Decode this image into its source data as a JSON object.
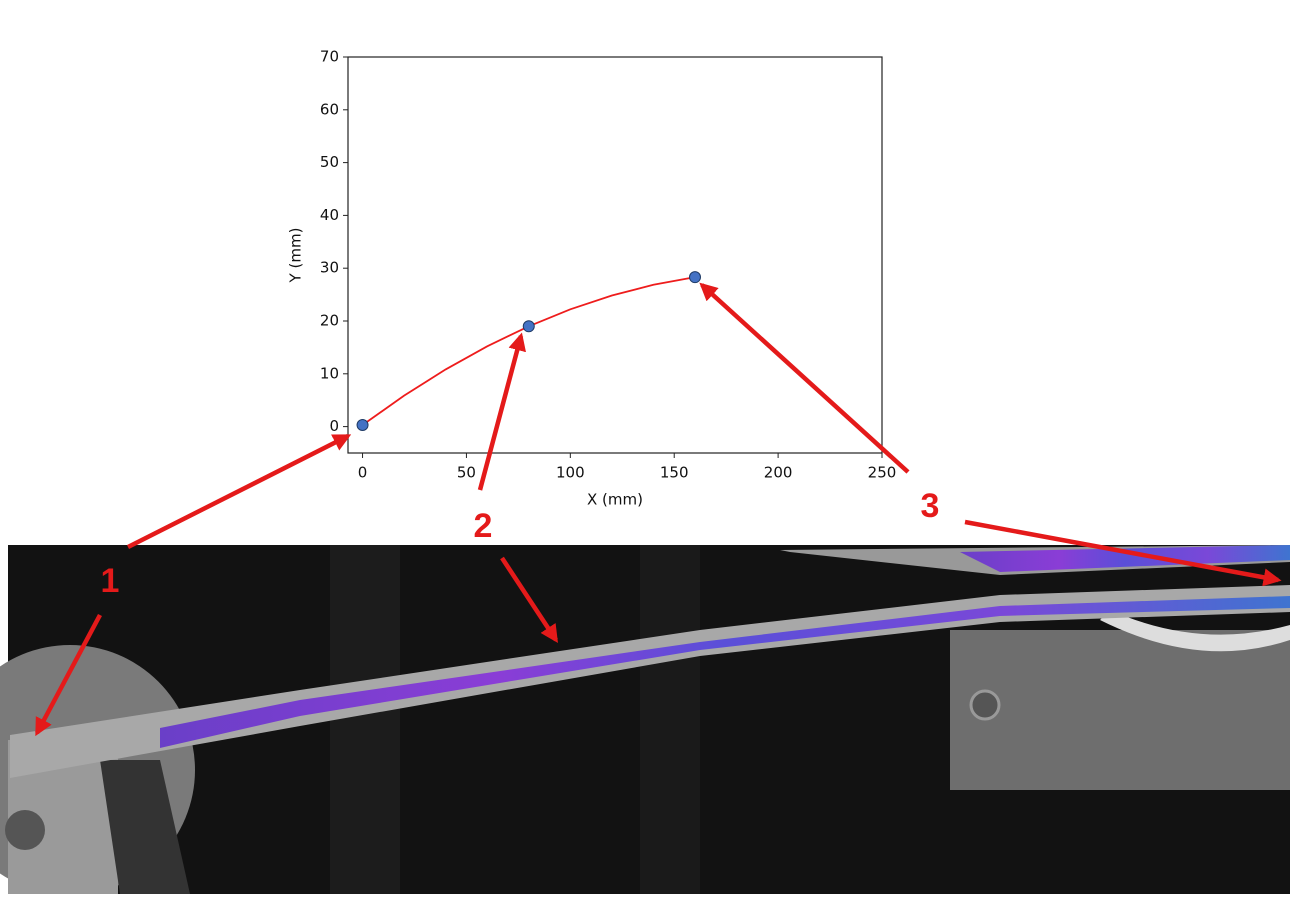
{
  "chart_data": {
    "type": "scatter",
    "xlabel": "X (mm)",
    "ylabel": "Y (mm)",
    "xlim": [
      -7,
      250
    ],
    "ylim": [
      -5,
      70
    ],
    "xticks": [
      0,
      50,
      100,
      150,
      200,
      250
    ],
    "yticks": [
      0,
      10,
      20,
      30,
      40,
      50,
      60,
      70
    ],
    "grid": false,
    "series": [
      {
        "mode": "line",
        "color": "#ee1c1c",
        "x": [
          0,
          20,
          40,
          60,
          80,
          100,
          120,
          140,
          160
        ],
        "values": [
          0.3,
          5.86,
          10.83,
          15.21,
          19.0,
          22.21,
          24.83,
          26.86,
          28.3
        ]
      },
      {
        "mode": "markers",
        "color": "#4472c4",
        "x": [
          0,
          80,
          160
        ],
        "values": [
          0.3,
          19.0,
          28.3
        ]
      }
    ],
    "annotations": [
      "1",
      "2",
      "3"
    ]
  }
}
